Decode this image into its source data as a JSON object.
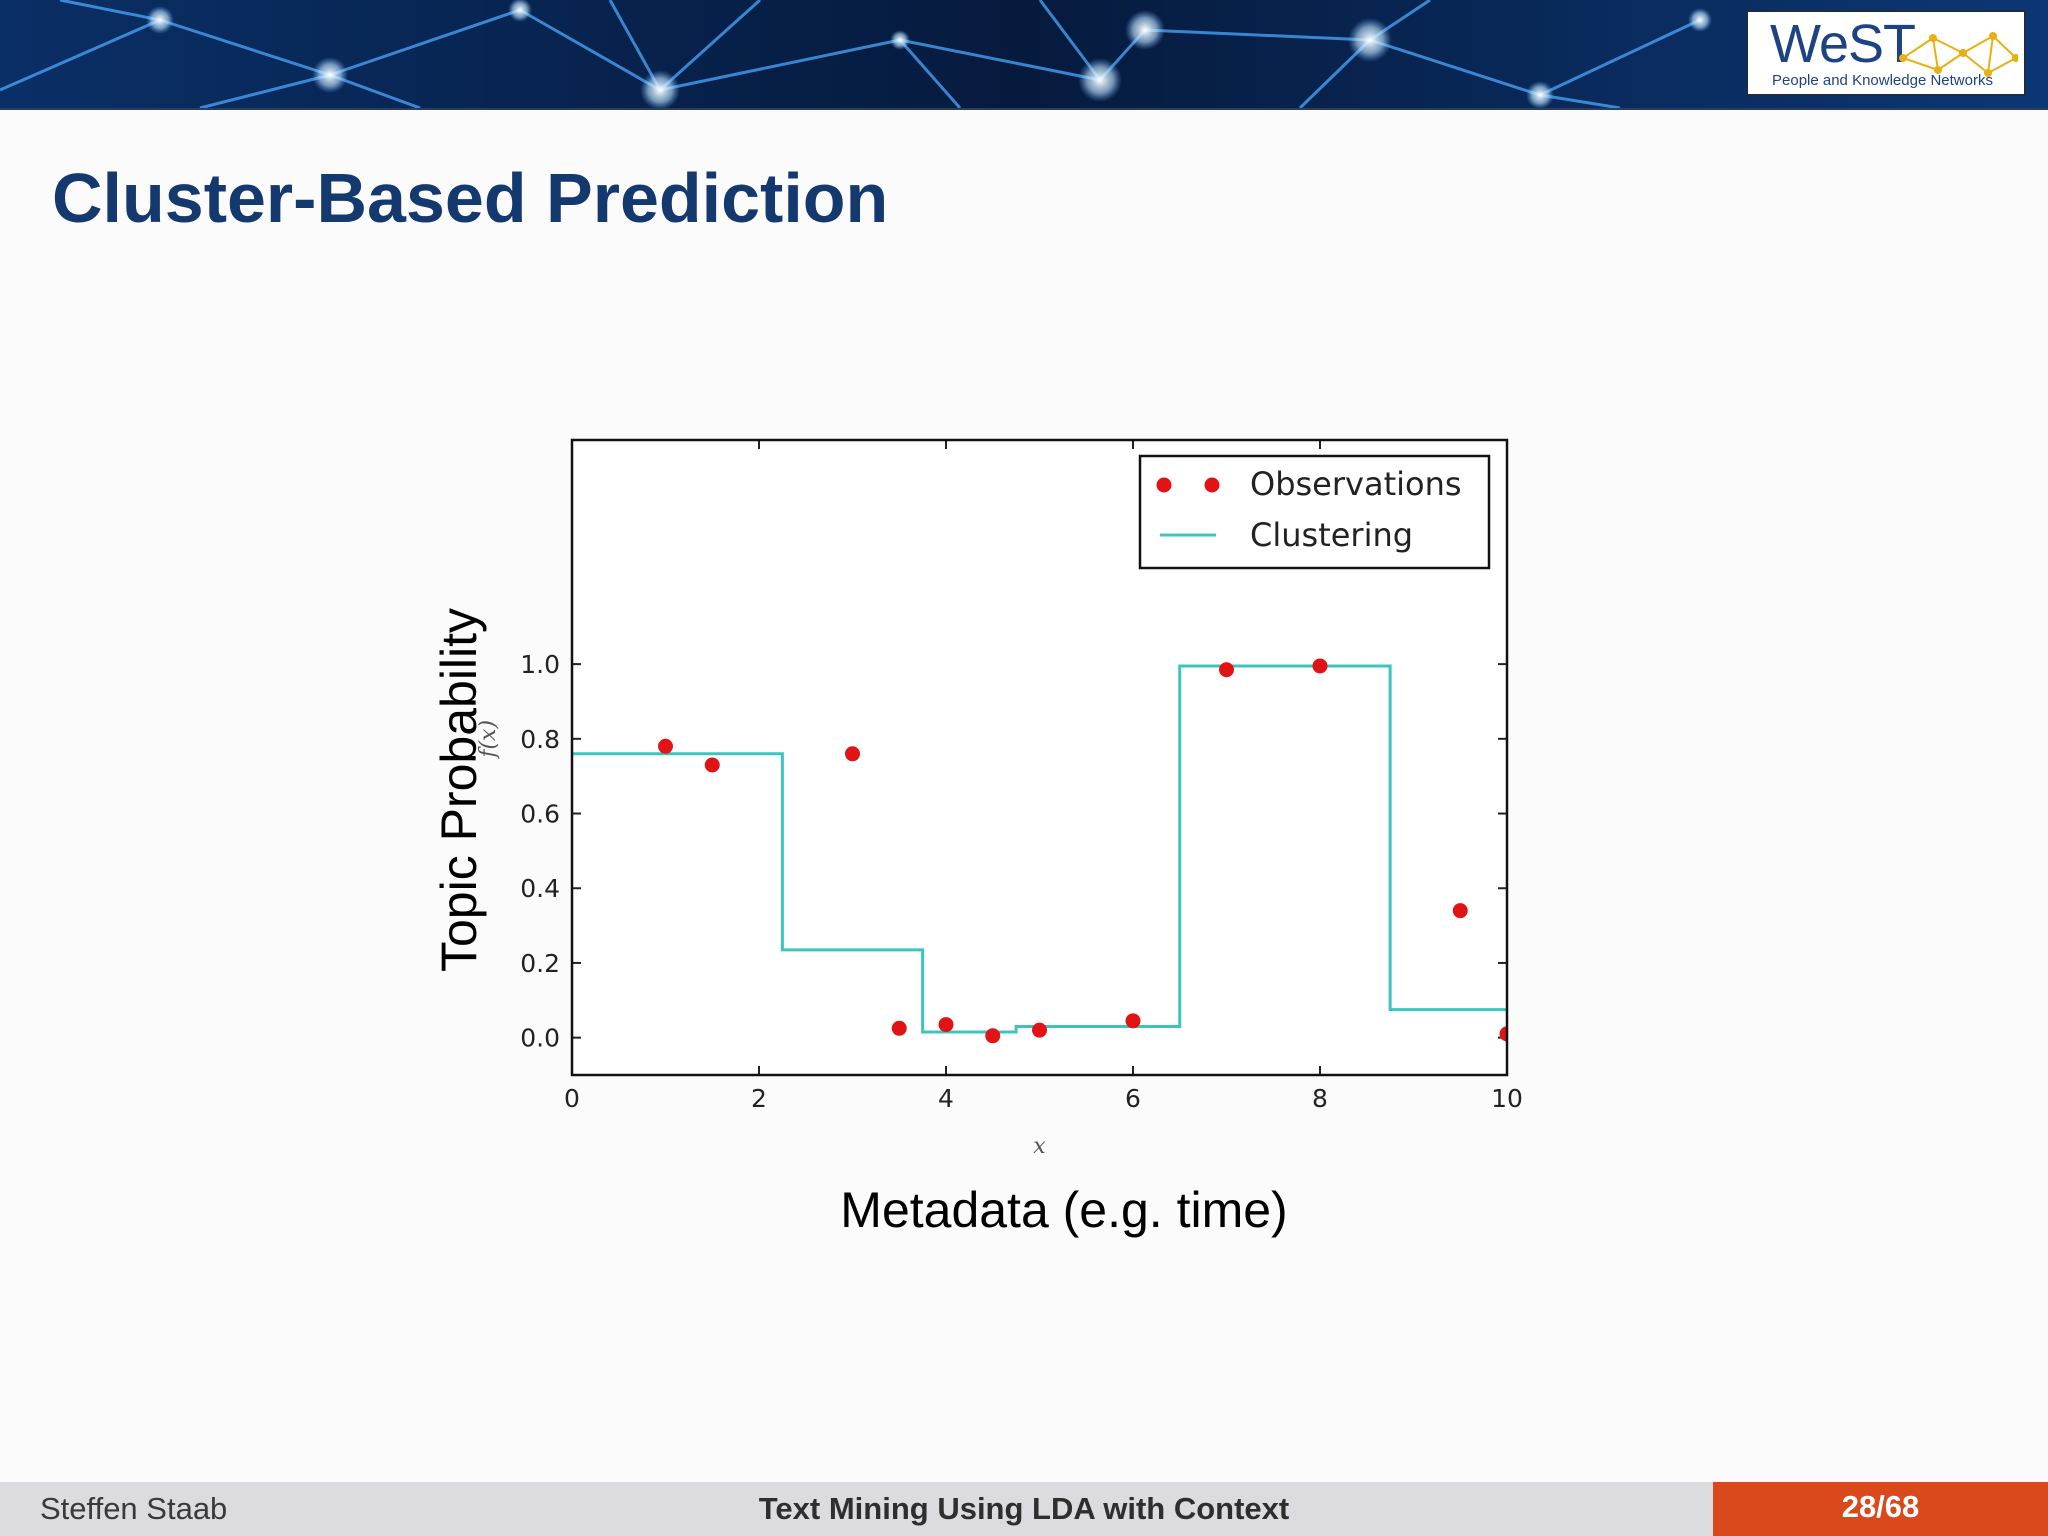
{
  "slide": {
    "title": "Cluster-Based Prediction",
    "logo_name": "WeST",
    "logo_tagline": "People and Knowledge Networks",
    "overlay_ylabel": "Topic Probability",
    "overlay_xlabel": "Metadata (e.g. time)"
  },
  "footer": {
    "author": "Steffen Staab",
    "course": "Text Mining Using LDA with Context",
    "page": "28/68"
  },
  "colors": {
    "title": "#14396f",
    "observations": "#e01414",
    "clustering": "#3fc4bd",
    "footer_accent": "#d9491c",
    "banner_bg": "#0b1b38"
  },
  "icons": {
    "logo_mark": "network-icon"
  },
  "chart_data": {
    "type": "scatter",
    "xlabel": "x",
    "ylabel": "f(x)",
    "xlim": [
      0,
      10
    ],
    "ylim": [
      -0.1,
      1.6
    ],
    "x_ticks": [
      "0",
      "2",
      "4",
      "6",
      "8",
      "10"
    ],
    "y_ticks": [
      "0.0",
      "0.2",
      "0.4",
      "0.6",
      "0.8",
      "1.0"
    ],
    "legend_position": "top-right",
    "grid": false,
    "series": [
      {
        "name": "Observations",
        "kind": "points",
        "x": [
          1.0,
          1.5,
          3.0,
          3.5,
          4.0,
          4.5,
          5.0,
          6.0,
          7.0,
          8.0,
          9.5,
          10.0
        ],
        "y": [
          0.78,
          0.73,
          0.76,
          0.025,
          0.035,
          0.005,
          0.02,
          0.045,
          0.985,
          0.995,
          0.34,
          0.01
        ]
      },
      {
        "name": "Clustering",
        "kind": "step",
        "x": [
          0,
          2.25,
          2.25,
          3.75,
          3.75,
          4.75,
          4.75,
          6.5,
          6.5,
          8.75,
          8.75,
          10
        ],
        "y": [
          0.76,
          0.76,
          0.235,
          0.235,
          0.015,
          0.015,
          0.03,
          0.03,
          0.995,
          0.995,
          0.075,
          0.075
        ]
      }
    ]
  }
}
